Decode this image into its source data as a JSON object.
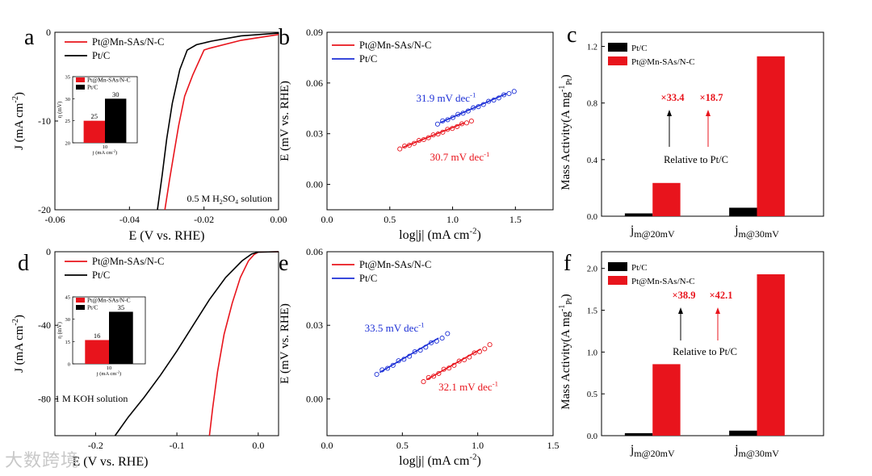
{
  "watermark": "大数跨境",
  "colors": {
    "red": "#e8141c",
    "black": "#000000",
    "blue": "#1c2fd6"
  },
  "chart_data": [
    {
      "id": "a",
      "type": "line",
      "panel_label": "a",
      "xlabel": "E (V vs. RHE)",
      "ylabel": "J (mA cm⁻²)",
      "xlim": [
        -0.06,
        0.0
      ],
      "ylim": [
        -20,
        0
      ],
      "xticks": [
        -0.06,
        -0.04,
        -0.02,
        0.0
      ],
      "xtick_labels": [
        "-0.06",
        "-0.04",
        "-0.02",
        "0.00"
      ],
      "yticks": [
        -20,
        -10,
        0
      ],
      "ytick_labels": [
        "-20",
        "-10",
        "0"
      ],
      "annotation": "0.5 M H₂SO₄ solution",
      "legend": [
        "Pt@Mn-SAs/N-C",
        "Pt/C"
      ],
      "series": [
        {
          "name": "Pt@Mn-SAs/N-C",
          "color": "red",
          "x": [
            -0.0305,
            -0.0292,
            -0.028,
            -0.0268,
            -0.0252,
            -0.023,
            -0.02,
            -0.0185,
            -0.01,
            0.0
          ],
          "y": [
            -20,
            -16.5,
            -13.5,
            -10.5,
            -7.2,
            -4.8,
            -2.0,
            -1.8,
            -0.9,
            -0.25
          ]
        },
        {
          "name": "Pt/C",
          "color": "black",
          "x": [
            -0.0325,
            -0.0312,
            -0.03,
            -0.0285,
            -0.0265,
            -0.0245,
            -0.022,
            -0.018,
            -0.01,
            0.0
          ],
          "y": [
            -20,
            -16.0,
            -12.0,
            -8.0,
            -4.2,
            -2.0,
            -1.4,
            -1.0,
            -0.4,
            -0.1
          ]
        }
      ],
      "inset": {
        "ylabel": "η (mV)",
        "xlabel": "j (mA cm⁻²)",
        "xtick": "10",
        "ylim": [
          20,
          35
        ],
        "yticks": [
          20,
          25,
          30,
          35
        ],
        "ytick_labels": [
          "20",
          "25",
          "30",
          "35"
        ],
        "legend": [
          "Pt@Mn-SAs/N-C",
          "Pt/C"
        ],
        "bars": [
          {
            "name": "Pt@Mn-SAs/N-C",
            "value": 25,
            "label": "25",
            "color": "red"
          },
          {
            "name": "Pt/C",
            "value": 30,
            "label": "30",
            "color": "black"
          }
        ]
      }
    },
    {
      "id": "b",
      "type": "scatter",
      "panel_label": "b",
      "xlabel": "log|j| (mA cm⁻²)",
      "ylabel": "E (mV vs. RHE)",
      "xlim": [
        0.0,
        1.8
      ],
      "ylim": [
        -0.015,
        0.09
      ],
      "xticks": [
        0.0,
        0.5,
        1.0,
        1.5
      ],
      "xtick_labels": [
        "0.0",
        "0.5",
        "1.0",
        "1.5"
      ],
      "yticks": [
        0.0,
        0.03,
        0.06,
        0.09
      ],
      "ytick_labels": [
        "0.00",
        "0.03",
        "0.06",
        "0.09"
      ],
      "legend": [
        "Pt@Mn-SAs/N-C",
        "Pt/C"
      ],
      "series": [
        {
          "name": "Pt@Mn-SAs/N-C",
          "color": "red",
          "x_start": 0.58,
          "x_end": 1.15,
          "y_start": 0.021,
          "y_end": 0.0375,
          "n_points": 16,
          "annotation": "30.7 mV dec⁻¹"
        },
        {
          "name": "Pt/C",
          "color": "blue",
          "x_start": 0.88,
          "x_end": 1.49,
          "y_start": 0.0357,
          "y_end": 0.055,
          "n_points": 16,
          "annotation": "31.9 mV dec⁻¹"
        }
      ]
    },
    {
      "id": "c",
      "type": "bar",
      "panel_label": "c",
      "ylabel": "Mass Activity(A mg⁻¹ Pt)",
      "categories": [
        "j m@20mV",
        "j m@30mV"
      ],
      "ylim": [
        0.0,
        1.3
      ],
      "yticks": [
        0.0,
        0.4,
        0.8,
        1.2
      ],
      "ytick_labels": [
        "0.0",
        "0.4",
        "0.8",
        "1.2"
      ],
      "legend": [
        "Pt/C",
        "Pt@Mn-SAs/N-C"
      ],
      "series": [
        {
          "name": "Pt/C",
          "color": "black",
          "values": [
            0.02,
            0.06
          ]
        },
        {
          "name": "Pt@Mn-SAs/N-C",
          "color": "red",
          "values": [
            0.235,
            1.13
          ]
        }
      ],
      "ratios": [
        "×33.4",
        "×18.7"
      ],
      "relative_label": "Relative to Pt/C"
    },
    {
      "id": "d",
      "type": "line",
      "panel_label": "d",
      "xlabel": "E (V vs. RHE)",
      "ylabel": "J (mA cm⁻²)",
      "xlim": [
        -0.25,
        0.025
      ],
      "ylim": [
        -100,
        0
      ],
      "xticks": [
        -0.2,
        -0.1,
        0.0
      ],
      "xtick_labels": [
        "-0.2",
        "-0.1",
        "0.0"
      ],
      "yticks": [
        -80,
        -40,
        0
      ],
      "ytick_labels": [
        "-80",
        "-40",
        "0"
      ],
      "annotation": "1 M KOH solution",
      "legend": [
        "Pt@Mn-SAs/N-C",
        "Pt/C"
      ],
      "series": [
        {
          "name": "Pt@Mn-SAs/N-C",
          "color": "red",
          "x": [
            -0.06,
            -0.056,
            -0.05,
            -0.042,
            -0.032,
            -0.022,
            -0.012,
            -0.005,
            0.0,
            0.025
          ],
          "y": [
            -100,
            -85,
            -65,
            -45,
            -28,
            -14,
            -5,
            -1.5,
            -0.2,
            0
          ]
        },
        {
          "name": "Pt/C",
          "color": "black",
          "x": [
            -0.176,
            -0.16,
            -0.14,
            -0.12,
            -0.1,
            -0.08,
            -0.06,
            -0.04,
            -0.02,
            -0.008,
            0.0,
            0.025
          ],
          "y": [
            -100,
            -90,
            -79,
            -67,
            -54,
            -40,
            -26,
            -14,
            -5,
            -1.2,
            -0.2,
            0
          ]
        }
      ],
      "inset": {
        "ylabel": "η (mV)",
        "xlabel": "j (mA cm⁻²)",
        "xtick": "10",
        "ylim": [
          0,
          45
        ],
        "yticks": [
          0,
          15,
          30,
          45
        ],
        "ytick_labels": [
          "0",
          "15",
          "30",
          "45"
        ],
        "legend": [
          "Pt@Mn-SAs/N-C",
          "Pt/C"
        ],
        "bars": [
          {
            "name": "Pt@Mn-SAs/N-C",
            "value": 16,
            "label": "16",
            "color": "red"
          },
          {
            "name": "Pt/C",
            "value": 35,
            "label": "35",
            "color": "black"
          }
        ]
      }
    },
    {
      "id": "e",
      "type": "scatter",
      "panel_label": "e",
      "xlabel": "log|j| (mA cm⁻²)",
      "ylabel": "E (mV vs. RHE)",
      "xlim": [
        0.0,
        1.5
      ],
      "ylim": [
        -0.015,
        0.06
      ],
      "xticks": [
        0.0,
        0.5,
        1.0,
        1.5
      ],
      "xtick_labels": [
        "0.0",
        "0.5",
        "1.0",
        "1.5"
      ],
      "yticks": [
        0.0,
        0.03,
        0.06
      ],
      "ytick_labels": [
        "0.00",
        "0.03",
        "0.06"
      ],
      "legend": [
        "Pt@Mn-SAs/N-C",
        "Pt/C"
      ],
      "series": [
        {
          "name": "Pt@Mn-SAs/N-C",
          "color": "red",
          "x_start": 0.64,
          "x_end": 1.08,
          "y_start": 0.007,
          "y_end": 0.0215,
          "n_points": 14,
          "annotation": "32.1 mV dec⁻¹"
        },
        {
          "name": "Pt/C",
          "color": "blue",
          "x_start": 0.33,
          "x_end": 0.8,
          "y_start": 0.01,
          "y_end": 0.026,
          "n_points": 14,
          "annotation": "33.5 mV dec⁻¹"
        }
      ]
    },
    {
      "id": "f",
      "type": "bar",
      "panel_label": "f",
      "ylabel": "Mass Activity(A mg⁻¹ Pt)",
      "categories": [
        "j m@20mV",
        "j m@30mV"
      ],
      "ylim": [
        0.0,
        2.2
      ],
      "yticks": [
        0.0,
        0.5,
        1.0,
        1.5,
        2.0
      ],
      "ytick_labels": [
        "0.0",
        "0.5",
        "1.0",
        "1.5",
        "2.0"
      ],
      "legend": [
        "Pt/C",
        "Pt@Mn-SAs/N-C"
      ],
      "series": [
        {
          "name": "Pt/C",
          "color": "black",
          "values": [
            0.03,
            0.06
          ]
        },
        {
          "name": "Pt@Mn-SAs/N-C",
          "color": "red",
          "values": [
            0.855,
            1.93
          ]
        }
      ],
      "ratios": [
        "×38.9",
        "×42.1"
      ],
      "relative_label": "Relative to Pt/C"
    }
  ]
}
